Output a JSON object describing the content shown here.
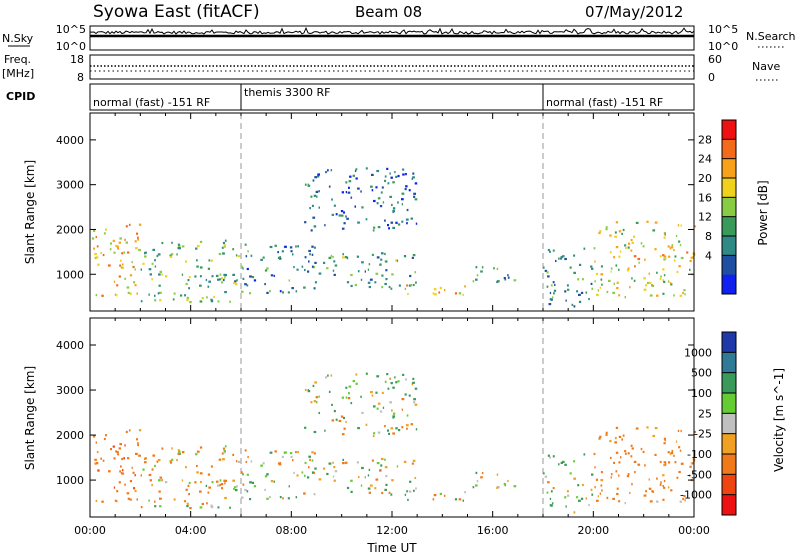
{
  "header": {
    "station": "Syowa East (fitACF)",
    "beam": "Beam 08",
    "date": "07/May/2012"
  },
  "noise_panel": {
    "left_label": "N.Sky",
    "right_label": "N.Search",
    "left_ticks": [
      "10^5",
      "10^0"
    ],
    "right_ticks": [
      "10^5",
      "10^0"
    ]
  },
  "freq_panel": {
    "left_label_1": "Freq.",
    "left_label_2": "[MHz]",
    "right_label": "Nave",
    "left_ticks": [
      "18",
      "8"
    ],
    "right_ticks": [
      "60",
      "0"
    ]
  },
  "cpid": {
    "label": "CPID",
    "segments": [
      {
        "name": "normal (fast) -151 RF",
        "start_hour": 0,
        "end_hour": 6
      },
      {
        "name": "themis 3300 RF",
        "start_hour": 6,
        "end_hour": 18
      },
      {
        "name": "normal (fast) -151 RF",
        "start_hour": 18,
        "end_hour": 24
      }
    ]
  },
  "power_colorbar": {
    "title": "Power [dB]",
    "ticks": [
      "28",
      "24",
      "20",
      "16",
      "12",
      "8",
      "4"
    ],
    "colors": [
      "#ee1111",
      "#f26a1a",
      "#f7a21a",
      "#f0d21c",
      "#88cc44",
      "#3a9a5a",
      "#2f8a86",
      "#1f4fa0",
      "#1020ee"
    ]
  },
  "velocity_colorbar": {
    "title": "Velocity [m s^-1]",
    "ticks": [
      "1000",
      "500",
      "100",
      "25",
      "-25",
      "-100",
      "-500",
      "-1000"
    ],
    "colors": [
      "#1f3aa8",
      "#2f7a96",
      "#3a9a5a",
      "#66cc33",
      "#c0c0c0",
      "#f0a022",
      "#f07a1a",
      "#ee4411",
      "#ee1111"
    ]
  },
  "chart_data": {
    "type": "heatmap",
    "x_axis": {
      "label": "Time UT",
      "ticks": [
        "00:00",
        "04:00",
        "08:00",
        "12:00",
        "16:00",
        "20:00",
        "00:00"
      ],
      "range_hours": [
        0,
        24
      ]
    },
    "y_axis": {
      "label": "Slant Range [km]",
      "ticks": [
        "1000",
        "2000",
        "3000",
        "4000"
      ],
      "range_km": [
        180,
        4600
      ]
    },
    "panels": [
      "Power [dB]",
      "Velocity [m s^-1]"
    ],
    "noise_sky_level": 1000,
    "transmit_frequency_mhz": 12,
    "nave": 30,
    "echo_regions": [
      {
        "t": [
          0,
          2
        ],
        "r": [
          500,
          2200
        ],
        "power": 20,
        "velocity": -300
      },
      {
        "t": [
          2,
          6
        ],
        "r": [
          400,
          1800
        ],
        "power": 12,
        "velocity": -100
      },
      {
        "t": [
          6,
          9
        ],
        "r": [
          600,
          1700
        ],
        "power": 8,
        "velocity": 0
      },
      {
        "t": [
          8.5,
          13
        ],
        "r": [
          2000,
          3400
        ],
        "power": 6,
        "velocity": 50
      },
      {
        "t": [
          9,
          13
        ],
        "r": [
          700,
          1500
        ],
        "power": 10,
        "velocity": 0
      },
      {
        "t": [
          12.5,
          15
        ],
        "r": [
          500,
          800
        ],
        "power": 22,
        "velocity": 0
      },
      {
        "t": [
          15,
          17
        ],
        "r": [
          800,
          1200
        ],
        "power": 10,
        "velocity": 0
      },
      {
        "t": [
          18,
          20
        ],
        "r": [
          300,
          1600
        ],
        "power": 8,
        "velocity": 100
      },
      {
        "t": [
          20,
          24
        ],
        "r": [
          500,
          2200
        ],
        "power": 18,
        "velocity": -250
      }
    ]
  }
}
